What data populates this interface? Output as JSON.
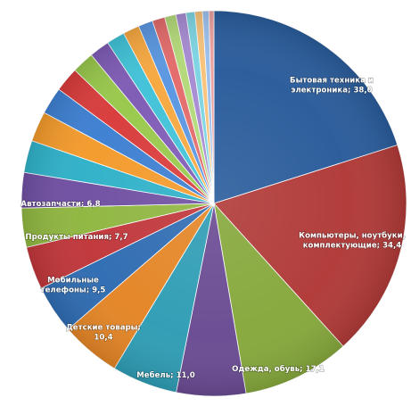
{
  "chart_data": {
    "type": "pie",
    "start_angle_deg": 0,
    "direction": "clockwise",
    "slices": [
      {
        "label_lines": [
          "Бытовая техника и",
          "электроника; 38,0"
        ],
        "value": 38.0,
        "color": "#2a5c9b"
      },
      {
        "label_lines": [
          "Компьютеры, ноутбуки,",
          "комплектующие; 34,4"
        ],
        "value": 34.4,
        "color": "#b03a38"
      },
      {
        "label_lines": [
          "Одежда, обувь; 17,1"
        ],
        "value": 17.1,
        "color": "#86a83c"
      },
      {
        "label_lines": [
          "Мебель; 11,0"
        ],
        "value": 11.0,
        "color": "#6a4b93"
      },
      {
        "label_lines": [
          "Детские товары;",
          "10,4"
        ],
        "value": 10.4,
        "color": "#2f9db5"
      },
      {
        "label_lines": [
          "Мобильные",
          "телефоны; 9,5"
        ],
        "value": 9.5,
        "color": "#e48526"
      },
      {
        "label_lines": [
          "Продукты питания; 7,7"
        ],
        "value": 7.7,
        "color": "#2f6cb2"
      },
      {
        "label_lines": [
          "Автозапчасти; 6,8"
        ],
        "value": 6.8,
        "color": "#c0363a"
      },
      {
        "label_lines": [],
        "value": 6.2,
        "color": "#8fb640"
      },
      {
        "label_lines": [],
        "value": 5.6,
        "color": "#6f4fa2"
      },
      {
        "label_lines": [],
        "value": 5.1,
        "color": "#2fb1c8"
      },
      {
        "label_lines": [],
        "value": 4.8,
        "color": "#f39a2b"
      },
      {
        "label_lines": [],
        "value": 4.3,
        "color": "#3d7fd1"
      },
      {
        "label_lines": [],
        "value": 3.9,
        "color": "#d93b3b"
      },
      {
        "label_lines": [],
        "value": 3.5,
        "color": "#98c84b"
      },
      {
        "label_lines": [],
        "value": 3.2,
        "color": "#7e5bb5"
      },
      {
        "label_lines": [],
        "value": 2.9,
        "color": "#41c2d8"
      },
      {
        "label_lines": [],
        "value": 2.6,
        "color": "#f7a840"
      },
      {
        "label_lines": [],
        "value": 2.3,
        "color": "#5a96e0"
      },
      {
        "label_lines": [],
        "value": 2.0,
        "color": "#e36b6b"
      },
      {
        "label_lines": [],
        "value": 1.8,
        "color": "#b3d979"
      },
      {
        "label_lines": [],
        "value": 1.6,
        "color": "#a68bd1"
      },
      {
        "label_lines": [],
        "value": 1.4,
        "color": "#7dd4e3"
      },
      {
        "label_lines": [],
        "value": 1.2,
        "color": "#f8c27a"
      },
      {
        "label_lines": [],
        "value": 1.0,
        "color": "#9cc0ec"
      },
      {
        "label_lines": [],
        "value": 0.8,
        "color": "#eca0a0"
      }
    ]
  }
}
